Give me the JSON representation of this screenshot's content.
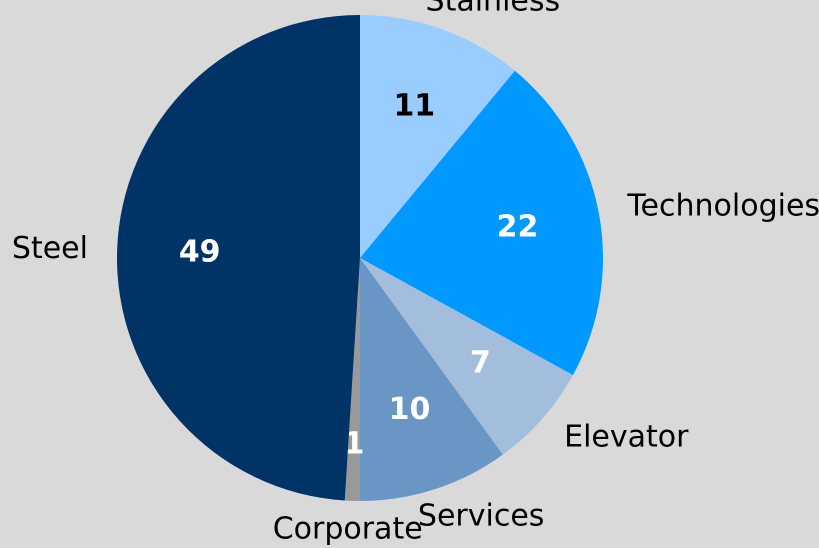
{
  "chart_data": {
    "type": "pie",
    "categories": [
      "Stainless",
      "Technologies",
      "Elevator",
      "Services",
      "Corporate",
      "Steel"
    ],
    "values": [
      11,
      22,
      7,
      10,
      1,
      49
    ],
    "colors": [
      "#99ccff",
      "#0099ff",
      "#a3bedd",
      "#6a96c6",
      "#999999",
      "#003366"
    ],
    "value_label_colors": [
      "#000000",
      "#ffffff",
      "#ffffff",
      "#ffffff",
      "#ffffff",
      "#ffffff"
    ]
  }
}
